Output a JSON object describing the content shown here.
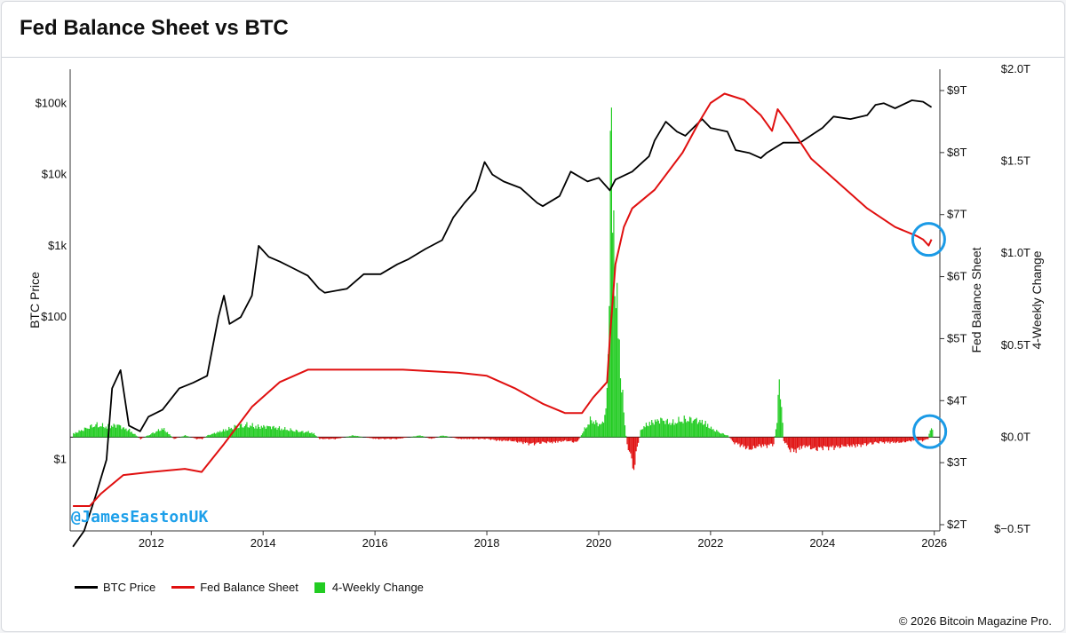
{
  "header": {
    "title": "Fed Balance Sheet vs BTC"
  },
  "watermark": "@JamesEastonUK",
  "copyright": "© 2026 Bitcoin Magazine Pro.",
  "colors": {
    "btc": "#000000",
    "fed": "#e01010",
    "change_pos": "#22cc22",
    "change_neg": "#e01010",
    "highlight": "#1a9ae6"
  },
  "chart_data": {
    "type": "line",
    "title": "Fed Balance Sheet vs BTC",
    "x_ticks": [
      2012,
      2014,
      2016,
      2018,
      2020,
      2022,
      2024,
      2026
    ],
    "x_range": [
      2010.55,
      2026.1
    ],
    "left_axis": {
      "label": "BTC Price",
      "scale": "log",
      "range": [
        0.1,
        300000
      ],
      "ticks": [
        1,
        100,
        1000,
        10000,
        100000
      ],
      "tick_labels": [
        "$1",
        "$100",
        "$1k",
        "$10k",
        "$100k"
      ]
    },
    "fed_axis": {
      "label": "Fed Balance Sheet",
      "unit": "T",
      "range": [
        2.0,
        9.25
      ],
      "ticks": [
        2,
        3,
        4,
        5,
        6,
        7,
        8,
        9
      ],
      "tick_labels": [
        "$2T",
        "$3T",
        "$4T",
        "$5T",
        "$6T",
        "$7T",
        "$8T",
        "$9T"
      ]
    },
    "change_axis": {
      "label": "4-Weekly Change",
      "unit": "T",
      "range": [
        -0.5,
        2.0
      ],
      "ticks": [
        -0.5,
        0,
        0.5,
        1.0,
        1.5,
        2.0
      ],
      "tick_labels": [
        "$−0.5T",
        "$0.0T",
        "$0.5T",
        "$1.0T",
        "$1.5T",
        "$2.0T"
      ]
    },
    "series": [
      {
        "name": "BTC Price",
        "axis": "left",
        "x": [
          2010.6,
          2010.8,
          2011.0,
          2011.2,
          2011.3,
          2011.45,
          2011.6,
          2011.8,
          2011.95,
          2012.2,
          2012.5,
          2012.75,
          2013.0,
          2013.2,
          2013.3,
          2013.4,
          2013.6,
          2013.8,
          2013.92,
          2014.1,
          2014.3,
          2014.5,
          2014.8,
          2015.0,
          2015.1,
          2015.5,
          2015.8,
          2016.1,
          2016.4,
          2016.6,
          2016.9,
          2017.2,
          2017.4,
          2017.6,
          2017.8,
          2017.96,
          2018.1,
          2018.3,
          2018.6,
          2018.9,
          2019.0,
          2019.3,
          2019.5,
          2019.8,
          2020.0,
          2020.2,
          2020.3,
          2020.6,
          2020.9,
          2021.0,
          2021.2,
          2021.4,
          2021.55,
          2021.85,
          2022.0,
          2022.3,
          2022.45,
          2022.7,
          2022.9,
          2023.0,
          2023.3,
          2023.6,
          2023.9,
          2024.0,
          2024.2,
          2024.5,
          2024.8,
          2024.95,
          2025.1,
          2025.3,
          2025.6,
          2025.8,
          2025.95
        ],
        "values": [
          0.06,
          0.1,
          0.3,
          1.0,
          10,
          18,
          3,
          2.5,
          4,
          5,
          10,
          12,
          15,
          100,
          200,
          80,
          100,
          200,
          1000,
          700,
          600,
          500,
          380,
          250,
          220,
          250,
          400,
          400,
          550,
          650,
          900,
          1200,
          2500,
          4000,
          6000,
          15000,
          10000,
          8000,
          6500,
          4000,
          3600,
          5000,
          11000,
          8000,
          9000,
          6000,
          8500,
          11000,
          18000,
          30000,
          55000,
          40000,
          35000,
          60000,
          45000,
          40000,
          22000,
          20000,
          17000,
          20000,
          28000,
          28000,
          40000,
          45000,
          65000,
          60000,
          68000,
          95000,
          100000,
          85000,
          110000,
          105000,
          88000
        ]
      },
      {
        "name": "Fed Balance Sheet",
        "axis": "fed",
        "x": [
          2010.6,
          2010.9,
          2011.1,
          2011.5,
          2012.0,
          2012.6,
          2012.9,
          2013.3,
          2013.8,
          2014.3,
          2014.8,
          2015.5,
          2016.5,
          2017.5,
          2018.0,
          2018.5,
          2019.0,
          2019.4,
          2019.7,
          2019.9,
          2020.15,
          2020.2,
          2020.3,
          2020.45,
          2020.6,
          2021.0,
          2021.5,
          2021.8,
          2022.0,
          2022.25,
          2022.6,
          2022.9,
          2023.1,
          2023.2,
          2023.4,
          2023.8,
          2024.3,
          2024.8,
          2025.3,
          2025.7,
          2025.8,
          2025.9,
          2025.95
        ],
        "values": [
          2.3,
          2.3,
          2.5,
          2.8,
          2.85,
          2.9,
          2.85,
          3.3,
          3.9,
          4.3,
          4.5,
          4.5,
          4.5,
          4.45,
          4.4,
          4.2,
          3.95,
          3.8,
          3.8,
          4.05,
          4.3,
          5.0,
          6.2,
          6.8,
          7.1,
          7.4,
          8.0,
          8.5,
          8.8,
          8.95,
          8.85,
          8.6,
          8.35,
          8.7,
          8.45,
          7.9,
          7.5,
          7.1,
          6.8,
          6.65,
          6.6,
          6.5,
          6.6
        ]
      },
      {
        "name": "4-Weekly Change",
        "axis": "change",
        "kind": "bar",
        "x": [
          2010.6,
          2010.9,
          2011.0,
          2011.2,
          2011.4,
          2011.5,
          2011.6,
          2011.8,
          2012.0,
          2012.2,
          2012.4,
          2012.6,
          2012.8,
          2012.9,
          2013.0,
          2013.2,
          2013.4,
          2013.5,
          2013.7,
          2013.9,
          2014.1,
          2014.3,
          2014.5,
          2014.7,
          2014.8,
          2014.9,
          2015.0,
          2015.3,
          2015.6,
          2016.0,
          2016.4,
          2016.8,
          2017.0,
          2017.2,
          2017.5,
          2017.7,
          2017.9,
          2018.0,
          2018.2,
          2018.4,
          2018.6,
          2018.8,
          2019.0,
          2019.2,
          2019.4,
          2019.6,
          2019.75,
          2019.85,
          2019.95,
          2020.05,
          2020.12,
          2020.17,
          2020.2,
          2020.23,
          2020.26,
          2020.3,
          2020.35,
          2020.4,
          2020.45,
          2020.5,
          2020.55,
          2020.6,
          2020.75,
          2020.9,
          2021.1,
          2021.3,
          2021.5,
          2021.7,
          2021.9,
          2022.0,
          2022.2,
          2022.3,
          2022.4,
          2022.55,
          2022.7,
          2022.85,
          2023.0,
          2023.12,
          2023.18,
          2023.22,
          2023.26,
          2023.3,
          2023.4,
          2023.5,
          2023.6,
          2023.7,
          2023.85,
          2024.0,
          2024.2,
          2024.4,
          2024.6,
          2024.8,
          2025.0,
          2025.2,
          2025.4,
          2025.6,
          2025.8,
          2025.88,
          2025.93,
          2025.97
        ],
        "values": [
          0.02,
          0.06,
          0.07,
          0.06,
          0.07,
          0.05,
          0.04,
          -0.01,
          0.02,
          0.05,
          -0.01,
          0.01,
          -0.01,
          -0.01,
          0.01,
          0.03,
          0.05,
          0.06,
          0.07,
          0.06,
          0.06,
          0.05,
          0.04,
          0.03,
          0.03,
          0.02,
          -0.01,
          -0.01,
          0.01,
          -0.01,
          -0.01,
          0.01,
          -0.01,
          0.01,
          -0.01,
          -0.01,
          -0.01,
          -0.01,
          -0.02,
          -0.02,
          -0.03,
          -0.04,
          -0.03,
          -0.03,
          -0.02,
          -0.03,
          0.05,
          0.1,
          0.08,
          0.07,
          0.15,
          0.5,
          1.8,
          1.5,
          1.2,
          0.8,
          0.6,
          0.3,
          0.1,
          -0.05,
          -0.08,
          -0.2,
          0.05,
          0.08,
          0.1,
          0.08,
          0.1,
          0.1,
          0.08,
          0.05,
          0.02,
          0.01,
          -0.03,
          -0.05,
          -0.07,
          -0.05,
          -0.05,
          -0.04,
          0.1,
          0.3,
          0.2,
          -0.02,
          -0.07,
          -0.08,
          -0.06,
          -0.05,
          -0.07,
          -0.06,
          -0.06,
          -0.05,
          -0.05,
          -0.04,
          -0.03,
          -0.03,
          -0.03,
          -0.02,
          -0.02,
          -0.01,
          0.06,
          0.04
        ]
      }
    ],
    "annotations": [
      {
        "type": "circle",
        "x": 2025.9,
        "series": "Fed Balance Sheet",
        "value": 6.6
      },
      {
        "type": "circle",
        "x": 2025.92,
        "series": "4-Weekly Change",
        "value": 0.03
      }
    ],
    "legend": [
      "BTC Price",
      "Fed Balance Sheet",
      "4-Weekly Change"
    ],
    "legend_position": "bottom-left",
    "grid": false
  }
}
